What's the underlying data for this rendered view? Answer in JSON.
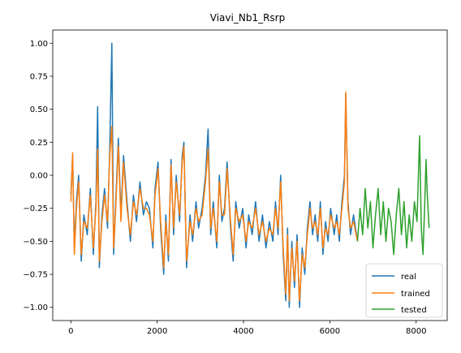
{
  "chart_data": {
    "type": "line",
    "title": "Viavi_Nb1_Rsrp",
    "xlabel": "",
    "ylabel": "",
    "xlim": [
      -420,
      8720
    ],
    "ylim": [
      -1.1,
      1.1
    ],
    "xticks": [
      0,
      2000,
      4000,
      6000,
      8000
    ],
    "yticks": [
      1.0,
      0.75,
      0.5,
      0.25,
      0.0,
      -0.25,
      -0.5,
      -0.75,
      -1.0
    ],
    "xtick_labels": [
      "0",
      "2000",
      "4000",
      "6000",
      "8000"
    ],
    "ytick_labels": [
      "1.00",
      "0.75",
      "0.50",
      "0.25",
      "0.00",
      "−0.25",
      "−0.50",
      "−0.75",
      "−1.00"
    ],
    "grid": false,
    "legend_position": "lower-right",
    "series": [
      {
        "name": "real",
        "color": "#1f77b4",
        "points": [
          [
            0,
            -0.15
          ],
          [
            40,
            0.15
          ],
          [
            80,
            -0.55
          ],
          [
            130,
            -0.2
          ],
          [
            180,
            0.0
          ],
          [
            240,
            -0.65
          ],
          [
            300,
            -0.3
          ],
          [
            380,
            -0.45
          ],
          [
            450,
            -0.1
          ],
          [
            520,
            -0.6
          ],
          [
            580,
            -0.2
          ],
          [
            620,
            0.52
          ],
          [
            660,
            -0.7
          ],
          [
            720,
            -0.3
          ],
          [
            780,
            -0.1
          ],
          [
            850,
            -0.4
          ],
          [
            900,
            0.2
          ],
          [
            950,
            1.0
          ],
          [
            990,
            -0.6
          ],
          [
            1040,
            -0.2
          ],
          [
            1100,
            0.28
          ],
          [
            1160,
            -0.3
          ],
          [
            1220,
            0.15
          ],
          [
            1300,
            -0.2
          ],
          [
            1380,
            -0.5
          ],
          [
            1450,
            -0.15
          ],
          [
            1520,
            -0.35
          ],
          [
            1600,
            -0.05
          ],
          [
            1680,
            -0.3
          ],
          [
            1750,
            -0.2
          ],
          [
            1820,
            -0.25
          ],
          [
            1900,
            -0.55
          ],
          [
            1950,
            -0.1
          ],
          [
            2020,
            0.1
          ],
          [
            2080,
            -0.4
          ],
          [
            2150,
            -0.75
          ],
          [
            2200,
            -0.3
          ],
          [
            2260,
            -0.65
          ],
          [
            2320,
            0.12
          ],
          [
            2380,
            -0.45
          ],
          [
            2440,
            0.0
          ],
          [
            2520,
            -0.35
          ],
          [
            2580,
            0.15
          ],
          [
            2620,
            0.25
          ],
          [
            2680,
            -0.7
          ],
          [
            2760,
            -0.3
          ],
          [
            2820,
            -0.5
          ],
          [
            2900,
            -0.2
          ],
          [
            2960,
            -0.4
          ],
          [
            3040,
            -0.25
          ],
          [
            3120,
            0.0
          ],
          [
            3180,
            0.35
          ],
          [
            3240,
            -0.45
          ],
          [
            3300,
            -0.2
          ],
          [
            3380,
            -0.55
          ],
          [
            3440,
            0.0
          ],
          [
            3500,
            -0.35
          ],
          [
            3560,
            -0.25
          ],
          [
            3620,
            0.1
          ],
          [
            3700,
            -0.4
          ],
          [
            3760,
            -0.65
          ],
          [
            3820,
            -0.2
          ],
          [
            3900,
            -0.4
          ],
          [
            3980,
            -0.25
          ],
          [
            4060,
            -0.55
          ],
          [
            4120,
            -0.3
          ],
          [
            4200,
            -0.45
          ],
          [
            4280,
            -0.2
          ],
          [
            4360,
            -0.5
          ],
          [
            4440,
            -0.3
          ],
          [
            4520,
            -0.55
          ],
          [
            4600,
            -0.35
          ],
          [
            4680,
            -0.5
          ],
          [
            4740,
            -0.2
          ],
          [
            4800,
            -0.45
          ],
          [
            4860,
            0.0
          ],
          [
            4920,
            -0.6
          ],
          [
            4980,
            -0.95
          ],
          [
            5020,
            -0.4
          ],
          [
            5060,
            -1.0
          ],
          [
            5120,
            -0.5
          ],
          [
            5180,
            -0.85
          ],
          [
            5240,
            -0.45
          ],
          [
            5300,
            -1.0
          ],
          [
            5360,
            -0.55
          ],
          [
            5420,
            -0.75
          ],
          [
            5480,
            -0.4
          ],
          [
            5540,
            -0.2
          ],
          [
            5600,
            -0.45
          ],
          [
            5660,
            -0.3
          ],
          [
            5720,
            -0.5
          ],
          [
            5780,
            -0.2
          ],
          [
            5840,
            -0.6
          ],
          [
            5900,
            -0.35
          ],
          [
            5960,
            -0.5
          ],
          [
            6020,
            -0.25
          ],
          [
            6100,
            -0.45
          ],
          [
            6160,
            -0.3
          ],
          [
            6220,
            -0.5
          ],
          [
            6280,
            -0.2
          ],
          [
            6340,
            0.0
          ],
          [
            6370,
            0.62
          ],
          [
            6420,
            -0.2
          ],
          [
            6480,
            -0.45
          ],
          [
            6550,
            -0.3
          ],
          [
            6640,
            -0.5
          ]
        ]
      },
      {
        "name": "trained",
        "color": "#ff7f0e",
        "points": [
          [
            0,
            -0.2
          ],
          [
            40,
            0.17
          ],
          [
            80,
            -0.6
          ],
          [
            130,
            -0.25
          ],
          [
            180,
            -0.05
          ],
          [
            240,
            -0.6
          ],
          [
            300,
            -0.35
          ],
          [
            380,
            -0.4
          ],
          [
            450,
            -0.15
          ],
          [
            520,
            -0.55
          ],
          [
            580,
            -0.25
          ],
          [
            620,
            0.2
          ],
          [
            660,
            -0.65
          ],
          [
            720,
            -0.35
          ],
          [
            780,
            -0.15
          ],
          [
            850,
            -0.35
          ],
          [
            900,
            0.15
          ],
          [
            950,
            0.37
          ],
          [
            990,
            -0.55
          ],
          [
            1040,
            -0.25
          ],
          [
            1100,
            0.22
          ],
          [
            1160,
            -0.35
          ],
          [
            1220,
            0.1
          ],
          [
            1300,
            -0.25
          ],
          [
            1380,
            -0.45
          ],
          [
            1450,
            -0.2
          ],
          [
            1520,
            -0.3
          ],
          [
            1600,
            -0.1
          ],
          [
            1680,
            -0.25
          ],
          [
            1750,
            -0.25
          ],
          [
            1820,
            -0.3
          ],
          [
            1900,
            -0.5
          ],
          [
            1950,
            -0.15
          ],
          [
            2020,
            0.05
          ],
          [
            2080,
            -0.35
          ],
          [
            2150,
            -0.7
          ],
          [
            2200,
            -0.35
          ],
          [
            2260,
            -0.6
          ],
          [
            2320,
            0.08
          ],
          [
            2380,
            -0.4
          ],
          [
            2440,
            -0.05
          ],
          [
            2520,
            -0.3
          ],
          [
            2580,
            0.1
          ],
          [
            2620,
            0.22
          ],
          [
            2680,
            -0.65
          ],
          [
            2760,
            -0.35
          ],
          [
            2820,
            -0.45
          ],
          [
            2900,
            -0.25
          ],
          [
            2960,
            -0.35
          ],
          [
            3040,
            -0.3
          ],
          [
            3120,
            -0.05
          ],
          [
            3180,
            0.2
          ],
          [
            3240,
            -0.4
          ],
          [
            3300,
            -0.25
          ],
          [
            3380,
            -0.5
          ],
          [
            3440,
            -0.05
          ],
          [
            3500,
            -0.3
          ],
          [
            3560,
            -0.3
          ],
          [
            3620,
            0.05
          ],
          [
            3700,
            -0.35
          ],
          [
            3760,
            -0.6
          ],
          [
            3820,
            -0.25
          ],
          [
            3900,
            -0.35
          ],
          [
            3980,
            -0.3
          ],
          [
            4060,
            -0.5
          ],
          [
            4120,
            -0.35
          ],
          [
            4200,
            -0.4
          ],
          [
            4280,
            -0.25
          ],
          [
            4360,
            -0.45
          ],
          [
            4440,
            -0.35
          ],
          [
            4520,
            -0.5
          ],
          [
            4600,
            -0.4
          ],
          [
            4680,
            -0.45
          ],
          [
            4740,
            -0.25
          ],
          [
            4800,
            -0.4
          ],
          [
            4860,
            -0.05
          ],
          [
            4920,
            -0.55
          ],
          [
            4980,
            -0.9
          ],
          [
            5020,
            -0.45
          ],
          [
            5060,
            -0.95
          ],
          [
            5120,
            -0.55
          ],
          [
            5180,
            -0.8
          ],
          [
            5240,
            -0.5
          ],
          [
            5300,
            -0.95
          ],
          [
            5360,
            -0.6
          ],
          [
            5420,
            -0.7
          ],
          [
            5480,
            -0.45
          ],
          [
            5540,
            -0.25
          ],
          [
            5600,
            -0.4
          ],
          [
            5660,
            -0.35
          ],
          [
            5720,
            -0.45
          ],
          [
            5780,
            -0.25
          ],
          [
            5840,
            -0.55
          ],
          [
            5900,
            -0.4
          ],
          [
            5960,
            -0.45
          ],
          [
            6020,
            -0.3
          ],
          [
            6100,
            -0.4
          ],
          [
            6160,
            -0.35
          ],
          [
            6220,
            -0.45
          ],
          [
            6280,
            -0.25
          ],
          [
            6340,
            -0.05
          ],
          [
            6370,
            0.63
          ],
          [
            6420,
            -0.25
          ],
          [
            6480,
            -0.4
          ],
          [
            6550,
            -0.35
          ],
          [
            6640,
            -0.5
          ]
        ]
      },
      {
        "name": "tested",
        "color": "#2ca02c",
        "points": [
          [
            6640,
            -0.5
          ],
          [
            6700,
            -0.25
          ],
          [
            6760,
            -0.45
          ],
          [
            6820,
            -0.1
          ],
          [
            6880,
            -0.4
          ],
          [
            6940,
            -0.2
          ],
          [
            7000,
            -0.55
          ],
          [
            7060,
            -0.3
          ],
          [
            7120,
            -0.1
          ],
          [
            7180,
            -0.45
          ],
          [
            7240,
            -0.2
          ],
          [
            7300,
            -0.5
          ],
          [
            7360,
            -0.25
          ],
          [
            7420,
            -0.35
          ],
          [
            7480,
            -0.6
          ],
          [
            7540,
            -0.3
          ],
          [
            7600,
            -0.1
          ],
          [
            7660,
            -0.45
          ],
          [
            7720,
            -0.2
          ],
          [
            7780,
            -0.55
          ],
          [
            7840,
            -0.3
          ],
          [
            7900,
            -0.5
          ],
          [
            7960,
            -0.2
          ],
          [
            8020,
            -0.35
          ],
          [
            8080,
            0.3
          ],
          [
            8120,
            -0.4
          ],
          [
            8160,
            -0.6
          ],
          [
            8200,
            -0.2
          ],
          [
            8230,
            0.12
          ],
          [
            8260,
            -0.15
          ],
          [
            8300,
            -0.4
          ]
        ]
      }
    ]
  }
}
